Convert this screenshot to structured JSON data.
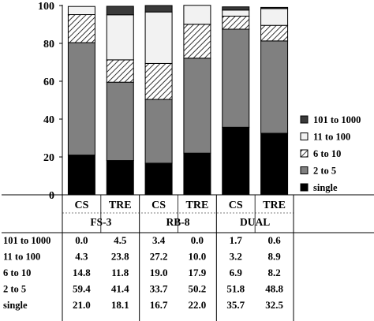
{
  "chart_data": {
    "type": "bar",
    "stacked": true,
    "ylim": [
      0,
      100
    ],
    "yticks": [
      0,
      20,
      40,
      60,
      80,
      100
    ],
    "grid": false,
    "legend_position": "right",
    "categories": [
      "CS",
      "TRE",
      "CS",
      "TRE",
      "CS",
      "TRE"
    ],
    "groups": [
      {
        "label": "FS-3",
        "span": 2
      },
      {
        "label": "RB-8",
        "span": 2
      },
      {
        "label": "DUAL",
        "span": 2
      }
    ],
    "series": [
      {
        "name": "single",
        "values": [
          21.0,
          18.1,
          16.7,
          22.0,
          35.7,
          32.5
        ],
        "color": "#000000",
        "pattern": "solid"
      },
      {
        "name": "2 to 5",
        "values": [
          59.4,
          41.4,
          33.7,
          50.2,
          51.8,
          48.8
        ],
        "color": "#808080",
        "pattern": "solid"
      },
      {
        "name": "6 to 10",
        "values": [
          14.8,
          11.8,
          19.0,
          17.9,
          6.9,
          8.2
        ],
        "color": "#ffffff",
        "pattern": "hatch"
      },
      {
        "name": "11 to 100",
        "values": [
          4.3,
          23.8,
          27.2,
          10.0,
          3.2,
          8.9
        ],
        "color": "#f2f2f2",
        "pattern": "solid"
      },
      {
        "name": "101 to 1000",
        "values": [
          0.0,
          4.5,
          3.4,
          0.0,
          1.7,
          0.6
        ],
        "color": "#3a3a3a",
        "pattern": "solid"
      }
    ],
    "table": {
      "row_order": [
        "101 to 1000",
        "11 to 100",
        "6 to 10",
        "2 to 5",
        "single"
      ],
      "value_strings": {
        "101 to 1000": [
          "0.0",
          "4.5",
          "3.4",
          "0.0",
          "1.7",
          "0.6"
        ],
        "11 to 100": [
          "4.3",
          "23.8",
          "27.2",
          "10.0",
          "3.2",
          "8.9"
        ],
        "6 to 10": [
          "14.8",
          "11.8",
          "19.0",
          "17.9",
          "6.9",
          "8.2"
        ],
        "2 to 5": [
          "59.4",
          "41.4",
          "33.7",
          "50.2",
          "51.8",
          "48.8"
        ],
        "single": [
          "21.0",
          "18.1",
          "16.7",
          "22.0",
          "35.7",
          "32.5"
        ]
      }
    },
    "legend_order": [
      "101 to 1000",
      "11 to 100",
      "6 to 10",
      "2 to 5",
      "single"
    ]
  }
}
